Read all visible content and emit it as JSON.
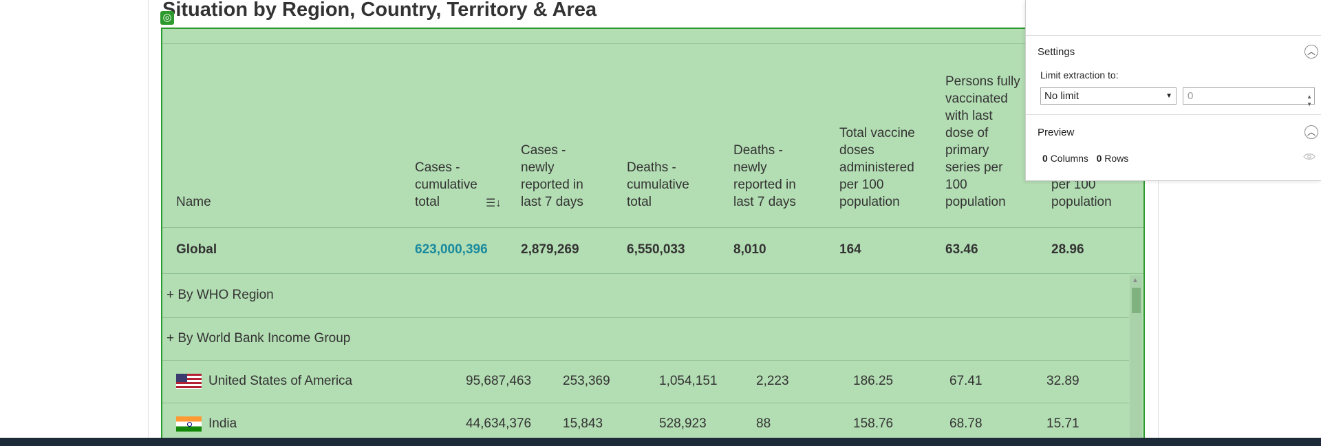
{
  "page": {
    "title": "Situation by Region, Country, Territory & Area",
    "select_badge_icon": "target-icon"
  },
  "table": {
    "columns": [
      "Name",
      "Cases - cumulative total",
      "Cases - newly reported in last 7 days",
      "Deaths - cumulative total",
      "Deaths - newly reported in last 7 days",
      "Total vaccine doses administered per 100 population",
      "Persons fully vaccinated with last dose of primary series per 100 population",
      "per 100 population"
    ],
    "sort_icon": "sort-descending-icon",
    "global": {
      "name": "Global",
      "cases_total": "623,000,396",
      "cases_7d": "2,879,269",
      "deaths_total": "6,550,033",
      "deaths_7d": "8,010",
      "doses_per100": "164",
      "fully_vacc_per100": "63.46",
      "booster_per100": "28.96"
    },
    "groups": [
      "+ By WHO Region",
      "+ By World Bank Income Group"
    ],
    "rows": [
      {
        "name": "United States of America",
        "flag": "us-flag-icon",
        "cases_total": "95,687,463",
        "cases_7d": "253,369",
        "deaths_total": "1,054,151",
        "deaths_7d": "2,223",
        "doses_per100": "186.25",
        "fully_vacc_per100": "67.41",
        "booster_per100": "32.89"
      },
      {
        "name": "India",
        "flag": "india-flag-icon",
        "cases_total": "44,634,376",
        "cases_7d": "15,843",
        "deaths_total": "528,923",
        "deaths_7d": "88",
        "doses_per100": "158.76",
        "fully_vacc_per100": "68.78",
        "booster_per100": "15.71"
      }
    ]
  },
  "panel": {
    "settings_heading": "Settings",
    "limit_label": "Limit extraction to:",
    "limit_value": "No limit",
    "limit_number": "0",
    "preview_heading": "Preview",
    "columns_count": "0",
    "columns_label": "Columns",
    "rows_count": "0",
    "rows_label": "Rows"
  }
}
